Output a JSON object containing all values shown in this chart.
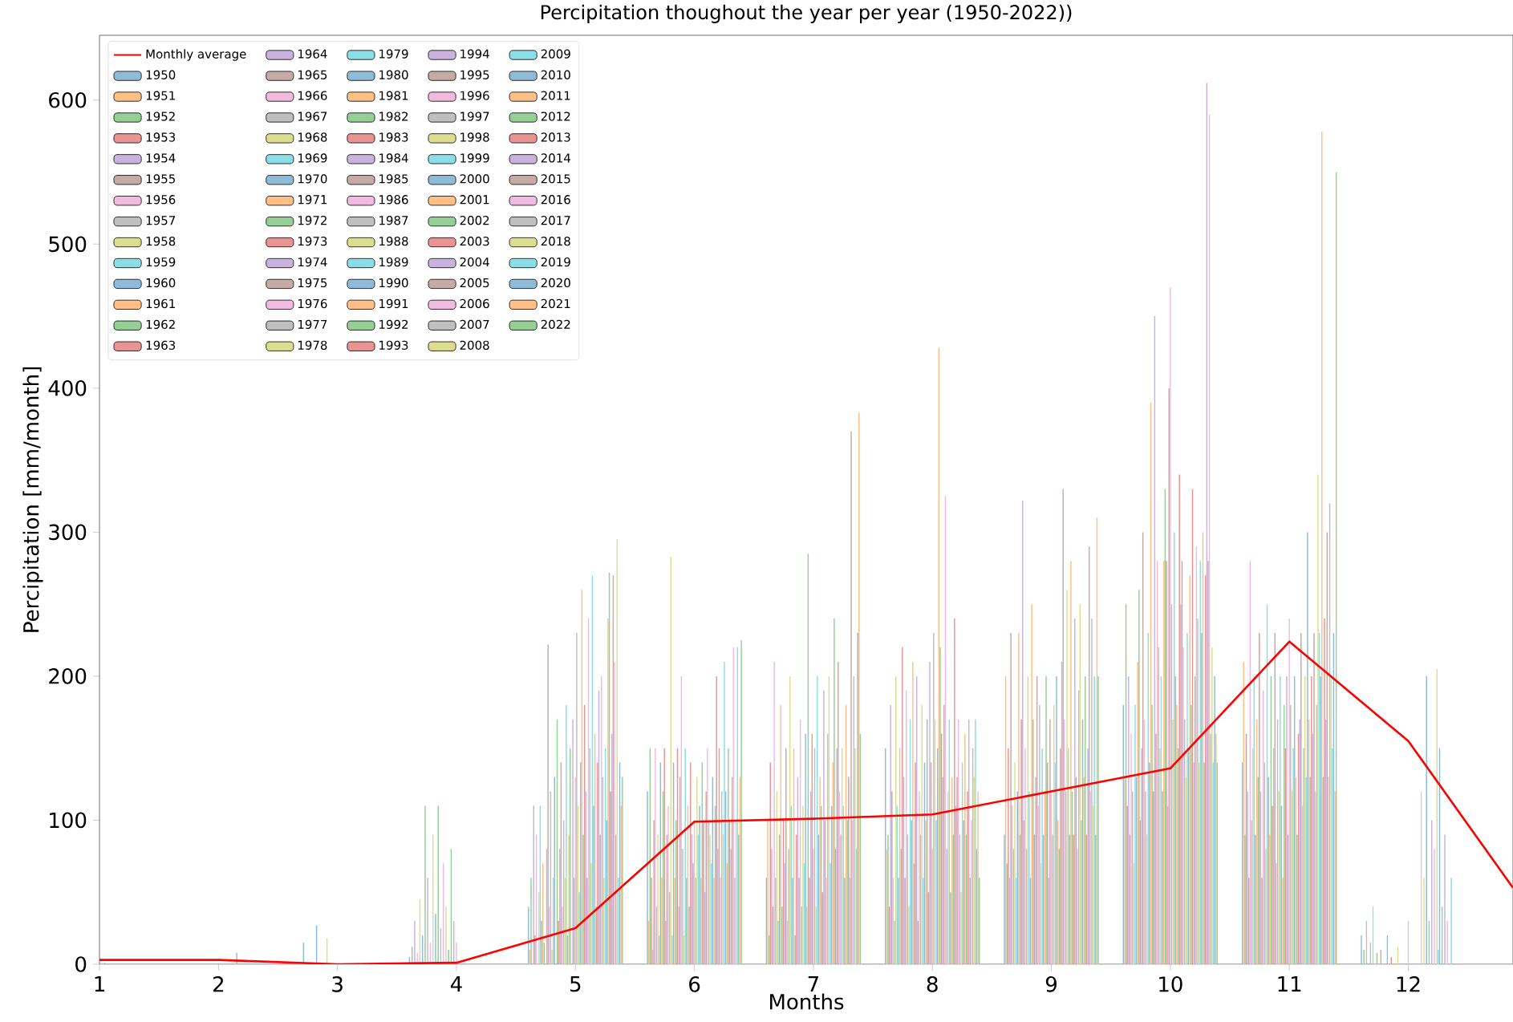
{
  "chart_data": {
    "type": "bar",
    "title": "Percipitation thoughout the year per year (1950-2022))",
    "xlabel": "Months",
    "ylabel": "Percipitation [mm/month]",
    "x": [
      1,
      2,
      3,
      4,
      5,
      6,
      7,
      8,
      9,
      10,
      11,
      12
    ],
    "xlim": [
      1,
      12.88
    ],
    "xticks": [
      1,
      2,
      3,
      4,
      5,
      6,
      7,
      8,
      9,
      10,
      11,
      12
    ],
    "ylim": [
      0,
      645
    ],
    "yticks": [
      0,
      100,
      200,
      300,
      400,
      500,
      600
    ],
    "legend": "top left",
    "series": [
      {
        "name": "Monthly average",
        "type": "line",
        "color": "#ff0000",
        "x": [
          1,
          2,
          3,
          4,
          5,
          6,
          7,
          8,
          9,
          10,
          11,
          12,
          12.88
        ],
        "values": [
          3,
          3,
          0,
          1,
          25,
          99,
          101,
          104,
          120,
          136,
          224,
          155,
          53
        ]
      },
      {
        "name": "1950",
        "color": "#8fbbd9",
        "values": [
          0,
          0,
          0,
          5,
          40,
          120,
          60,
          150,
          90,
          180,
          140,
          20
        ]
      },
      {
        "name": "1951",
        "color": "#ffbf86",
        "values": [
          0,
          0,
          0,
          0,
          10,
          30,
          100,
          80,
          200,
          130,
          210,
          0
        ]
      },
      {
        "name": "1952",
        "color": "#95cf95",
        "values": [
          0,
          0,
          0,
          12,
          60,
          150,
          20,
          90,
          70,
          250,
          90,
          10
        ]
      },
      {
        "name": "1953",
        "color": "#ea9393",
        "values": [
          0,
          0,
          0,
          0,
          0,
          60,
          140,
          40,
          150,
          110,
          160,
          0
        ]
      },
      {
        "name": "1954",
        "color": "#c9b3de",
        "values": [
          0,
          0,
          0,
          30,
          110,
          10,
          80,
          180,
          60,
          200,
          120,
          30
        ]
      },
      {
        "name": "1955",
        "color": "#c5aaa5",
        "values": [
          0,
          0,
          0,
          0,
          20,
          100,
          40,
          120,
          230,
          90,
          60,
          0
        ]
      },
      {
        "name": "1956",
        "color": "#f1bbe0",
        "values": [
          0,
          0,
          0,
          8,
          90,
          150,
          210,
          60,
          110,
          160,
          280,
          0
        ]
      },
      {
        "name": "1957",
        "color": "#bfbfbf",
        "values": [
          0,
          0,
          0,
          0,
          0,
          40,
          60,
          30,
          80,
          120,
          100,
          15
        ]
      },
      {
        "name": "1958",
        "color": "#dddd90",
        "values": [
          0,
          0,
          0,
          45,
          50,
          90,
          120,
          200,
          140,
          70,
          150,
          0
        ]
      },
      {
        "name": "1959",
        "color": "#8bdee7",
        "values": [
          0,
          0,
          0,
          0,
          110,
          20,
          30,
          110,
          60,
          180,
          200,
          40
        ]
      },
      {
        "name": "1960",
        "color": "#8fbbd9",
        "values": [
          0,
          0,
          15,
          20,
          30,
          140,
          90,
          60,
          120,
          130,
          90,
          0
        ]
      },
      {
        "name": "1961",
        "color": "#ffbf86",
        "values": [
          0,
          0,
          0,
          0,
          70,
          60,
          180,
          150,
          230,
          210,
          170,
          0
        ]
      },
      {
        "name": "1962",
        "color": "#95cf95",
        "values": [
          0,
          0,
          0,
          110,
          15,
          120,
          40,
          80,
          90,
          260,
          130,
          8
        ]
      },
      {
        "name": "1963",
        "color": "#ea9393",
        "values": [
          0,
          0,
          0,
          0,
          0,
          150,
          100,
          220,
          170,
          100,
          230,
          0
        ]
      },
      {
        "name": "1964",
        "color": "#c9b3de",
        "values": [
          0,
          0,
          0,
          60,
          80,
          30,
          70,
          130,
          322,
          150,
          120,
          0
        ]
      },
      {
        "name": "1965",
        "color": "#c5aaa5",
        "values": [
          0,
          0,
          0,
          0,
          222,
          90,
          150,
          60,
          100,
          300,
          60,
          10
        ]
      },
      {
        "name": "1966",
        "color": "#f1bbe0",
        "values": [
          0,
          0,
          0,
          15,
          40,
          110,
          30,
          190,
          150,
          170,
          190,
          0
        ]
      },
      {
        "name": "1967",
        "color": "#bfbfbf",
        "values": [
          0,
          0,
          0,
          0,
          120,
          50,
          80,
          90,
          80,
          120,
          140,
          0
        ]
      },
      {
        "name": "1968",
        "color": "#dddd90",
        "values": [
          0,
          0,
          0,
          90,
          10,
          283,
          200,
          40,
          200,
          90,
          80,
          0
        ]
      },
      {
        "name": "1969",
        "color": "#8bdee7",
        "values": [
          0,
          0,
          0,
          0,
          60,
          20,
          110,
          170,
          120,
          230,
          250,
          0
        ]
      },
      {
        "name": "1970",
        "color": "#8fbbd9",
        "values": [
          0,
          0,
          27,
          35,
          130,
          140,
          60,
          100,
          60,
          140,
          130,
          20
        ]
      },
      {
        "name": "1971",
        "color": "#ffbf86",
        "values": [
          0,
          0,
          0,
          0,
          0,
          60,
          150,
          210,
          250,
          390,
          90,
          0
        ]
      },
      {
        "name": "1972",
        "color": "#95cf95",
        "values": [
          0,
          0,
          0,
          110,
          170,
          100,
          20,
          70,
          170,
          180,
          200,
          0
        ]
      },
      {
        "name": "1973",
        "color": "#ea9393",
        "values": [
          0,
          0,
          0,
          0,
          30,
          150,
          90,
          140,
          90,
          120,
          110,
          5
        ]
      },
      {
        "name": "1974",
        "color": "#c9b3de",
        "values": [
          0,
          0,
          0,
          25,
          80,
          40,
          130,
          200,
          130,
          450,
          150,
          0
        ]
      },
      {
        "name": "1975",
        "color": "#c5aaa5",
        "values": [
          0,
          0,
          0,
          0,
          140,
          130,
          60,
          30,
          200,
          160,
          230,
          0
        ]
      },
      {
        "name": "1976",
        "color": "#f1bbe0",
        "values": [
          0,
          0,
          0,
          70,
          40,
          200,
          170,
          120,
          110,
          280,
          70,
          0
        ]
      },
      {
        "name": "1977",
        "color": "#bfbfbf",
        "values": [
          0,
          0,
          0,
          0,
          100,
          80,
          40,
          90,
          180,
          220,
          170,
          0
        ]
      },
      {
        "name": "1978",
        "color": "#dddd90",
        "values": [
          0,
          0,
          18,
          40,
          60,
          20,
          110,
          180,
          70,
          150,
          120,
          12
        ]
      },
      {
        "name": "1979",
        "color": "#8bdee7",
        "values": [
          0,
          0,
          0,
          0,
          180,
          150,
          70,
          60,
          150,
          200,
          200,
          0
        ]
      },
      {
        "name": "1980",
        "color": "#8fbbd9",
        "values": [
          0,
          0,
          0,
          10,
          20,
          60,
          160,
          140,
          90,
          120,
          110,
          0
        ]
      },
      {
        "name": "1981",
        "color": "#ffbf86",
        "values": [
          0,
          0,
          0,
          0,
          90,
          110,
          40,
          100,
          120,
          280,
          60,
          0
        ]
      },
      {
        "name": "1982",
        "color": "#95cf95",
        "values": [
          0,
          0,
          0,
          80,
          150,
          40,
          285,
          170,
          200,
          330,
          180,
          0
        ]
      },
      {
        "name": "1983",
        "color": "#ea9393",
        "values": [
          0,
          0,
          0,
          0,
          0,
          140,
          60,
          50,
          140,
          280,
          150,
          0
        ]
      },
      {
        "name": "1984",
        "color": "#c9b3de",
        "values": [
          0,
          0,
          0,
          30,
          170,
          90,
          120,
          210,
          60,
          110,
          200,
          0
        ]
      },
      {
        "name": "1985",
        "color": "#c5aaa5",
        "values": [
          0,
          0,
          0,
          0,
          60,
          70,
          160,
          140,
          170,
          400,
          90,
          0
        ]
      },
      {
        "name": "1986",
        "color": "#f1bbe0",
        "values": [
          0,
          0,
          0,
          15,
          130,
          100,
          80,
          80,
          120,
          470,
          240,
          30
        ]
      },
      {
        "name": "1987",
        "color": "#bfbfbf",
        "values": [
          0,
          0,
          0,
          0,
          230,
          60,
          150,
          230,
          90,
          250,
          180,
          0
        ]
      },
      {
        "name": "1988",
        "color": "#dddd90",
        "values": [
          0,
          0,
          0,
          0,
          110,
          130,
          40,
          170,
          180,
          170,
          120,
          0
        ]
      },
      {
        "name": "1989",
        "color": "#8bdee7",
        "values": [
          0,
          0,
          0,
          0,
          50,
          90,
          200,
          100,
          140,
          300,
          150,
          0
        ]
      },
      {
        "name": "1990",
        "color": "#8fbbd9",
        "values": [
          1,
          0,
          0,
          0,
          140,
          110,
          90,
          150,
          200,
          200,
          200,
          0
        ]
      },
      {
        "name": "1991",
        "color": "#ffbf86",
        "values": [
          0,
          0,
          0,
          0,
          260,
          60,
          130,
          428,
          100,
          180,
          130,
          0
        ]
      },
      {
        "name": "1992",
        "color": "#95cf95",
        "values": [
          0,
          0,
          0,
          0,
          90,
          140,
          110,
          220,
          80,
          150,
          90,
          0
        ]
      },
      {
        "name": "1993",
        "color": "#ea9393",
        "values": [
          0,
          0,
          0,
          0,
          180,
          100,
          50,
          160,
          150,
          340,
          160,
          0
        ]
      },
      {
        "name": "1994",
        "color": "#c9b3de",
        "values": [
          0,
          0,
          0,
          0,
          120,
          50,
          190,
          130,
          210,
          250,
          170,
          0
        ]
      },
      {
        "name": "1995",
        "color": "#c5aaa5",
        "values": [
          0,
          0,
          0,
          0,
          60,
          120,
          100,
          180,
          330,
          280,
          230,
          0
        ]
      },
      {
        "name": "1996",
        "color": "#f1bbe0",
        "values": [
          0,
          0,
          0,
          0,
          240,
          150,
          60,
          325,
          170,
          220,
          110,
          120
        ]
      },
      {
        "name": "1997",
        "color": "#bfbfbf",
        "values": [
          0,
          0,
          0,
          0,
          150,
          100,
          160,
          80,
          120,
          170,
          150,
          0
        ]
      },
      {
        "name": "1998",
        "color": "#dddd90",
        "values": [
          0,
          0,
          0,
          0,
          70,
          90,
          200,
          120,
          260,
          130,
          200,
          60
        ]
      },
      {
        "name": "1999",
        "color": "#8bdee7",
        "values": [
          0,
          0,
          0,
          0,
          270,
          70,
          70,
          170,
          150,
          230,
          130,
          0
        ]
      },
      {
        "name": "2000",
        "color": "#8fbbd9",
        "values": [
          0,
          8,
          0,
          0,
          110,
          130,
          110,
          50,
          90,
          150,
          300,
          200
        ]
      },
      {
        "name": "2001",
        "color": "#ffbf86",
        "values": [
          0,
          0,
          0,
          0,
          160,
          60,
          140,
          130,
          280,
          270,
          170,
          0
        ]
      },
      {
        "name": "2002",
        "color": "#95cf95",
        "values": [
          0,
          0,
          0,
          0,
          40,
          110,
          240,
          90,
          120,
          180,
          130,
          30
        ]
      },
      {
        "name": "2003",
        "color": "#ea9393",
        "values": [
          0,
          0,
          0,
          0,
          140,
          200,
          80,
          240,
          90,
          330,
          200,
          0
        ]
      },
      {
        "name": "2004",
        "color": "#c9b3de",
        "values": [
          0,
          0,
          0,
          0,
          190,
          80,
          150,
          110,
          240,
          140,
          160,
          100
        ]
      },
      {
        "name": "2005",
        "color": "#c5aaa5",
        "values": [
          0,
          0,
          0,
          0,
          90,
          150,
          210,
          130,
          130,
          200,
          230,
          0
        ]
      },
      {
        "name": "2006",
        "color": "#f1bbe0",
        "values": [
          0,
          0,
          0,
          0,
          200,
          60,
          120,
          170,
          80,
          290,
          120,
          80
        ]
      },
      {
        "name": "2007",
        "color": "#bfbfbf",
        "values": [
          0,
          0,
          0,
          0,
          130,
          120,
          90,
          90,
          190,
          240,
          180,
          0
        ]
      },
      {
        "name": "2008",
        "color": "#dddd90",
        "values": [
          0,
          0,
          0,
          0,
          60,
          90,
          150,
          50,
          250,
          140,
          340,
          205
        ]
      },
      {
        "name": "2009",
        "color": "#8bdee7",
        "values": [
          0,
          0,
          0,
          0,
          150,
          210,
          110,
          140,
          100,
          280,
          230,
          10
        ]
      },
      {
        "name": "2010",
        "color": "#8fbbd9",
        "values": [
          0,
          0,
          0,
          0,
          100,
          120,
          60,
          100,
          170,
          230,
          200,
          150
        ]
      },
      {
        "name": "2011",
        "color": "#ffbf86",
        "values": [
          0,
          0,
          0,
          0,
          240,
          70,
          180,
          160,
          130,
          300,
          578,
          0
        ]
      },
      {
        "name": "2012",
        "color": "#95cf95",
        "values": [
          0,
          0,
          0,
          0,
          272,
          150,
          100,
          90,
          200,
          140,
          130,
          40
        ]
      },
      {
        "name": "2013",
        "color": "#ea9393",
        "values": [
          0,
          0,
          0,
          0,
          120,
          100,
          130,
          120,
          90,
          270,
          240,
          0
        ]
      },
      {
        "name": "2014",
        "color": "#c9b3de",
        "values": [
          0,
          0,
          0,
          0,
          160,
          80,
          60,
          170,
          150,
          612,
          170,
          90
        ]
      },
      {
        "name": "2015",
        "color": "#c5aaa5",
        "values": [
          0,
          0,
          0,
          0,
          270,
          130,
          370,
          60,
          290,
          280,
          300,
          0
        ]
      },
      {
        "name": "2016",
        "color": "#f1bbe0",
        "values": [
          0,
          0,
          0,
          0,
          210,
          220,
          100,
          100,
          120,
          590,
          130,
          30
        ]
      },
      {
        "name": "2017",
        "color": "#bfbfbf",
        "values": [
          0,
          0,
          0,
          0,
          90,
          60,
          200,
          150,
          240,
          160,
          320,
          0
        ]
      },
      {
        "name": "2018",
        "color": "#dddd90",
        "values": [
          0,
          0,
          0,
          0,
          295,
          100,
          150,
          130,
          110,
          220,
          200,
          0
        ]
      },
      {
        "name": "2019",
        "color": "#8bdee7",
        "values": [
          0,
          0,
          0,
          0,
          60,
          220,
          80,
          170,
          200,
          140,
          150,
          60
        ]
      },
      {
        "name": "2020",
        "color": "#8fbbd9",
        "values": [
          0,
          0,
          0,
          0,
          140,
          90,
          230,
          80,
          90,
          200,
          230,
          0
        ]
      },
      {
        "name": "2021",
        "color": "#ffbf86",
        "values": [
          0,
          0,
          0,
          0,
          110,
          130,
          383,
          120,
          310,
          160,
          120,
          0
        ]
      },
      {
        "name": "2022",
        "color": "#95cf95",
        "values": [
          0,
          0,
          0,
          0,
          130,
          225,
          160,
          60,
          200,
          140,
          550,
          0
        ]
      }
    ]
  }
}
